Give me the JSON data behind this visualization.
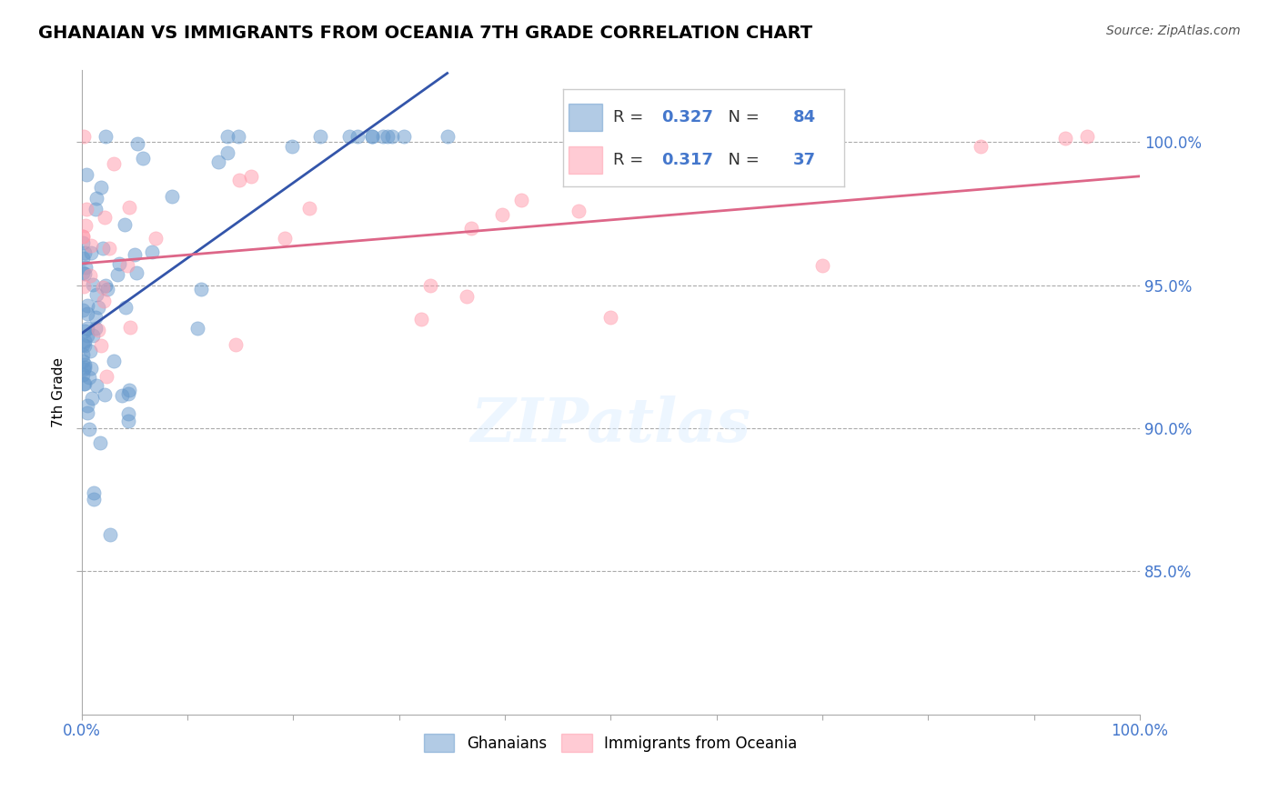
{
  "title": "GHANAIAN VS IMMIGRANTS FROM OCEANIA 7TH GRADE CORRELATION CHART",
  "source": "Source: ZipAtlas.com",
  "ylabel": "7th Grade",
  "r_blue": 0.327,
  "n_blue": 84,
  "r_pink": 0.317,
  "n_pink": 37,
  "blue_color": "#6699CC",
  "pink_color": "#FF99AA",
  "trend_blue": "#3355AA",
  "trend_pink": "#DD6688",
  "xlim": [
    0.0,
    1.0
  ],
  "ylim": [
    0.8,
    1.025
  ]
}
